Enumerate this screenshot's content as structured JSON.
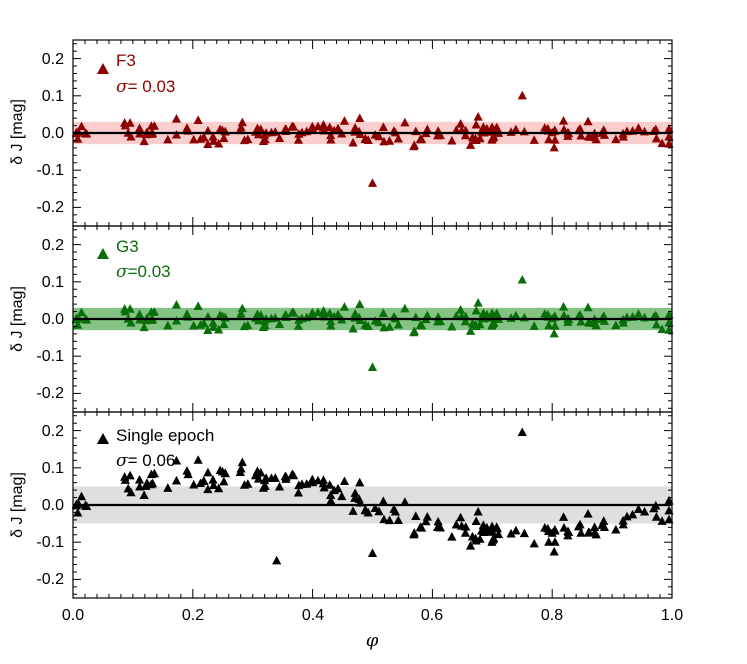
{
  "chart_data": {
    "type": "scatter",
    "figure": {
      "xlabel": "φ",
      "xlim": [
        0.0,
        1.0
      ],
      "xticks": [
        "0.0",
        "0.2",
        "0.4",
        "0.6",
        "0.8",
        "1.0"
      ]
    },
    "panels": [
      {
        "id": "F3",
        "label": "F3",
        "sigma_symbol": "σ",
        "sigma_value": "= 0.03",
        "ylabel": "δ J [mag]",
        "ylim": [
          -0.25,
          0.25
        ],
        "yticks": [
          "0.2",
          "0.1",
          "0.0",
          "-0.1",
          "-0.2"
        ],
        "color": "#8b0000",
        "band_color": "#f9c6c4",
        "band": [
          -0.03,
          0.03
        ],
        "model": "flat"
      },
      {
        "id": "G3",
        "label": "G3",
        "sigma_symbol": "σ",
        "sigma_value": "=0.03",
        "ylabel": "δ J [mag]",
        "ylim": [
          -0.25,
          0.25
        ],
        "yticks": [
          "0.2",
          "0.1",
          "0.0",
          "-0.1",
          "-0.2"
        ],
        "color": "#0a6e0a",
        "band_color": "#6fb86f",
        "band": [
          -0.03,
          0.03
        ],
        "model": "flat"
      },
      {
        "id": "single",
        "label": "Single epoch",
        "sigma_symbol": "σ",
        "sigma_value": "= 0.06",
        "ylabel": "δ J [mag]",
        "ylim": [
          -0.25,
          0.25
        ],
        "yticks": [
          "0.2",
          "0.1",
          "0.0",
          "-0.1",
          "-0.2"
        ],
        "color": "#000000",
        "band_color": "#d9d9d9",
        "band": [
          -0.05,
          0.05
        ],
        "model": "sinusoid"
      }
    ],
    "points_estimated": "approx. 180 points per panel, scatter around a zero line",
    "notable_points": [
      {
        "panel": "F3",
        "x": 0.5,
        "y": -0.135
      },
      {
        "panel": "F3",
        "x": 0.75,
        "y": 0.1
      },
      {
        "panel": "G3",
        "x": 0.5,
        "y": -0.13
      },
      {
        "panel": "G3",
        "x": 0.75,
        "y": 0.105
      },
      {
        "panel": "single",
        "x": 0.5,
        "y": -0.13
      },
      {
        "panel": "single",
        "x": 0.75,
        "y": 0.195
      },
      {
        "panel": "single",
        "x": 0.34,
        "y": -0.15
      }
    ]
  }
}
